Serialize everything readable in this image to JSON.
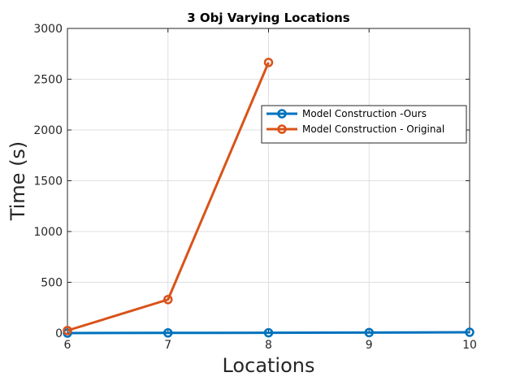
{
  "chart_data": {
    "type": "line",
    "title": "3 Obj Varying Locations",
    "xlabel": "Locations",
    "ylabel": "Time (s)",
    "x": [
      6,
      7,
      8,
      9,
      10
    ],
    "xlim": [
      6,
      10
    ],
    "ylim": [
      0,
      3000
    ],
    "xticks": [
      "6",
      "7",
      "8",
      "9",
      "10"
    ],
    "yticks": [
      "0",
      "500",
      "1000",
      "1500",
      "2000",
      "2500",
      "3000"
    ],
    "grid": true,
    "legend_position": "upper-right",
    "series": [
      {
        "name": "Model Construction -Ours",
        "color": "#0072BD",
        "marker": "circle-open",
        "points": [
          [
            6,
            0
          ],
          [
            7,
            2
          ],
          [
            8,
            3
          ],
          [
            9,
            5
          ],
          [
            10,
            8
          ]
        ]
      },
      {
        "name": "Model Construction - Original",
        "color": "#D95319",
        "marker": "circle-open",
        "points": [
          [
            6,
            25
          ],
          [
            7,
            330
          ],
          [
            8,
            2665
          ]
        ]
      }
    ]
  }
}
